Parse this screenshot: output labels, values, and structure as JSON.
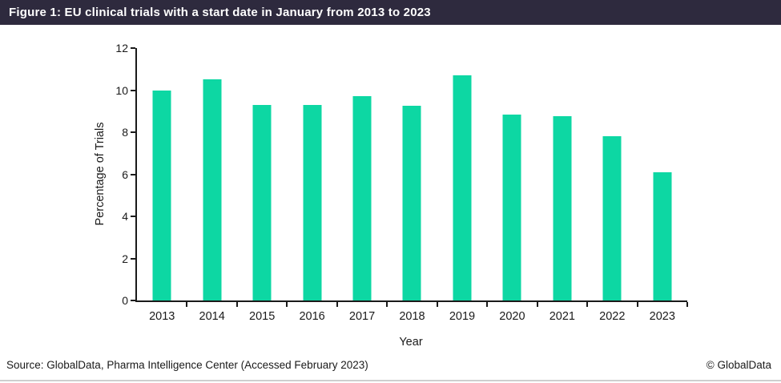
{
  "header": {
    "title": "Figure 1: EU clinical trials with a start date in January from 2013 to 2023"
  },
  "chart_data": {
    "type": "bar",
    "title": "EU clinical trials with a start date in January from 2013 to 2023",
    "categories": [
      "2013",
      "2014",
      "2015",
      "2016",
      "2017",
      "2018",
      "2019",
      "2020",
      "2021",
      "2022",
      "2023"
    ],
    "values": [
      10.0,
      10.5,
      9.3,
      9.3,
      9.7,
      9.25,
      10.7,
      8.85,
      8.75,
      7.8,
      6.1
    ],
    "xlabel": "Year",
    "ylabel": "Percentage of Trials",
    "ylim": [
      0,
      12
    ],
    "yticks": [
      0,
      2,
      4,
      6,
      8,
      10,
      12
    ],
    "grid": false,
    "legend_position": "none",
    "bar_color": "#0dd7a3"
  },
  "footer": {
    "source": "Source: GlobalData, Pharma Intelligence Center (Accessed February 2023)",
    "copyright": "© GlobalData"
  },
  "colors": {
    "header_bg": "#2e2a3e",
    "header_text": "#ffffff",
    "bar": "#0dd7a3",
    "axis": "#1a1a1a",
    "divider": "#cfcfcf"
  }
}
